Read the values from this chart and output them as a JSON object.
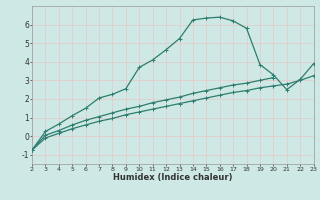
{
  "xlabel": "Humidex (Indice chaleur)",
  "bg_color": "#cde8e5",
  "grid_color": "#b8d8d5",
  "line_color": "#2e7d6e",
  "xlim": [
    2,
    23
  ],
  "ylim": [
    -1.5,
    7.0
  ],
  "xticks": [
    2,
    3,
    4,
    5,
    6,
    7,
    8,
    9,
    10,
    11,
    12,
    13,
    14,
    15,
    16,
    17,
    18,
    19,
    20,
    21,
    22,
    23
  ],
  "yticks": [
    -1,
    0,
    1,
    2,
    3,
    4,
    5,
    6
  ],
  "line1_x": [
    2,
    3,
    4,
    5,
    6,
    7,
    8,
    9,
    10,
    11,
    12,
    13,
    14,
    15,
    16,
    17,
    18,
    19,
    20,
    21,
    22,
    23
  ],
  "line1_y": [
    -0.75,
    0.25,
    0.65,
    1.1,
    1.5,
    2.05,
    2.25,
    2.55,
    3.7,
    4.1,
    4.65,
    5.25,
    6.25,
    6.35,
    6.4,
    6.2,
    5.8,
    3.85,
    3.3,
    2.5,
    3.05,
    3.9
  ],
  "line2_x": [
    2,
    3,
    4,
    5,
    6,
    7,
    8,
    9,
    10,
    11,
    12,
    13,
    14,
    15,
    16,
    17,
    18,
    19,
    20,
    21,
    22,
    23
  ],
  "line2_y": [
    -0.75,
    0.05,
    0.3,
    0.6,
    0.85,
    1.05,
    1.25,
    1.45,
    1.6,
    1.8,
    1.95,
    2.1,
    2.3,
    2.45,
    2.6,
    2.75,
    2.85,
    3.0,
    3.15,
    2.5,
    3.05,
    3.9
  ],
  "line3_x": [
    2,
    3,
    4,
    5,
    6,
    7,
    8,
    9,
    10,
    11,
    12,
    13,
    14,
    15,
    16,
    17,
    18,
    19,
    20,
    21,
    22,
    23
  ],
  "line3_y": [
    -0.75,
    -0.1,
    0.15,
    0.4,
    0.6,
    0.8,
    0.95,
    1.15,
    1.3,
    1.45,
    1.6,
    1.75,
    1.9,
    2.05,
    2.2,
    2.35,
    2.45,
    2.6,
    2.7,
    2.8,
    3.0,
    3.25
  ]
}
